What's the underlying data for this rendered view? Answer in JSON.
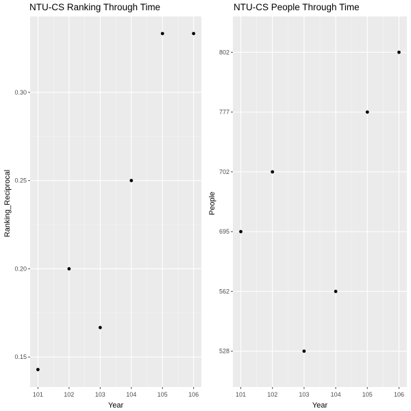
{
  "chart_data": [
    {
      "type": "scatter",
      "title": "NTU-CS Ranking Through Time",
      "xlabel": "Year",
      "ylabel": "Ranking_Reciprocal",
      "x": [
        101,
        102,
        103,
        104,
        105,
        106
      ],
      "y": [
        0.1429,
        0.2,
        0.1667,
        0.25,
        0.3333,
        0.3333
      ],
      "x_ticks": [
        101,
        102,
        103,
        104,
        105,
        106
      ],
      "y_ticks": [
        0.15,
        0.2,
        0.25,
        0.3
      ],
      "y_tick_labels": [
        "0.15",
        "0.20",
        "0.25",
        "0.30"
      ],
      "xlim": [
        100.75,
        106.25
      ],
      "ylim": [
        0.133,
        0.343
      ],
      "grid": true
    },
    {
      "type": "scatter",
      "title": "NTU-CS People Through Time",
      "xlabel": "Year",
      "ylabel": "People",
      "x": [
        101,
        102,
        103,
        104,
        105,
        106
      ],
      "y": [
        "695",
        "702",
        "528",
        "562",
        "777",
        "802"
      ],
      "y_categories": [
        "528",
        "562",
        "695",
        "702",
        "777",
        "802"
      ],
      "x_ticks": [
        101,
        102,
        103,
        104,
        105,
        106
      ],
      "xlim": [
        100.75,
        106.25
      ],
      "grid": true
    }
  ]
}
